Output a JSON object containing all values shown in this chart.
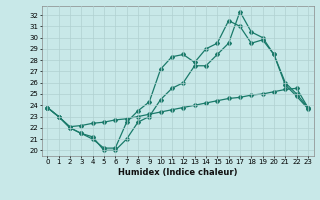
{
  "xlabel": "Humidex (Indice chaleur)",
  "bg_color": "#c8e8e8",
  "grid_color": "#b0d0d0",
  "line_color": "#1a7a6a",
  "xlim": [
    -0.5,
    23.5
  ],
  "ylim": [
    19.5,
    32.8
  ],
  "yticks": [
    20,
    21,
    22,
    23,
    24,
    25,
    26,
    27,
    28,
    29,
    30,
    31,
    32
  ],
  "xticks": [
    0,
    1,
    2,
    3,
    4,
    5,
    6,
    7,
    8,
    9,
    10,
    11,
    12,
    13,
    14,
    15,
    16,
    17,
    18,
    19,
    20,
    21,
    22,
    23
  ],
  "series1_x": [
    0,
    1,
    2,
    3,
    4,
    5,
    6,
    7,
    8,
    9,
    10,
    11,
    12,
    13,
    14,
    15,
    16,
    17,
    18,
    19,
    20,
    21,
    22,
    23
  ],
  "series1_y": [
    23.8,
    23.0,
    22.0,
    21.5,
    21.2,
    20.0,
    20.0,
    21.0,
    22.5,
    23.0,
    24.5,
    25.5,
    26.0,
    27.5,
    27.5,
    28.5,
    29.5,
    32.3,
    30.5,
    30.0,
    28.5,
    26.0,
    25.0,
    23.8
  ],
  "series2_x": [
    0,
    1,
    2,
    3,
    4,
    5,
    6,
    7,
    8,
    9,
    10,
    11,
    12,
    13,
    14,
    15,
    16,
    17,
    18,
    19,
    20,
    21,
    22,
    23
  ],
  "series2_y": [
    23.8,
    23.0,
    22.0,
    21.5,
    21.0,
    20.2,
    20.2,
    22.5,
    23.5,
    24.3,
    27.2,
    28.3,
    28.5,
    27.8,
    29.0,
    29.5,
    31.5,
    31.0,
    29.5,
    29.8,
    28.5,
    25.8,
    24.8,
    23.7
  ],
  "series3_x": [
    0,
    1,
    2,
    3,
    4,
    5,
    6,
    7,
    8,
    9,
    10,
    11,
    12,
    13,
    14,
    15,
    16,
    17,
    18,
    19,
    20,
    21,
    22,
    23
  ],
  "series3_y": [
    23.8,
    23.0,
    22.1,
    22.2,
    22.4,
    22.5,
    22.7,
    22.8,
    23.0,
    23.2,
    23.4,
    23.6,
    23.8,
    24.0,
    24.2,
    24.4,
    24.6,
    24.7,
    24.9,
    25.0,
    25.2,
    25.4,
    25.5,
    23.8
  ]
}
